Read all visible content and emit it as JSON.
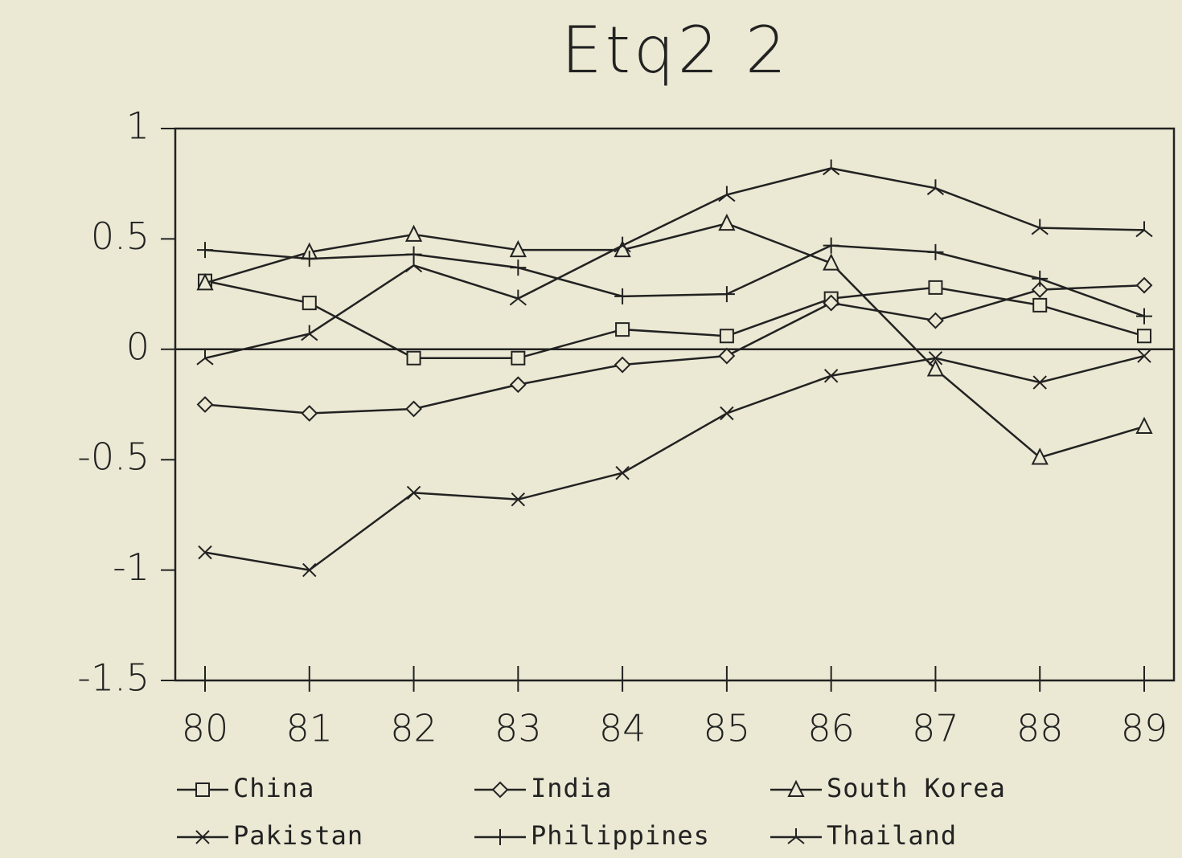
{
  "chart_data": {
    "type": "line",
    "title": "Etq2 2",
    "categories": [
      "80",
      "81",
      "82",
      "83",
      "84",
      "85",
      "86",
      "87",
      "88",
      "89"
    ],
    "ylim": [
      -1.5,
      1
    ],
    "yticks": [
      1,
      0.5,
      0,
      -0.5,
      -1,
      -1.5
    ],
    "zero_line": true,
    "grid": false,
    "series": [
      {
        "name": "China",
        "color": "#222222",
        "marker": "square",
        "values": [
          0.31,
          0.21,
          -0.04,
          -0.04,
          0.09,
          0.06,
          0.23,
          0.28,
          0.2,
          0.06
        ]
      },
      {
        "name": "India",
        "color": "#222222",
        "marker": "diamond",
        "values": [
          -0.25,
          -0.29,
          -0.27,
          -0.16,
          -0.07,
          -0.03,
          0.21,
          0.13,
          0.27,
          0.29
        ]
      },
      {
        "name": "South Korea",
        "color": "#222222",
        "marker": "triangle",
        "values": [
          0.3,
          0.44,
          0.52,
          0.45,
          0.45,
          0.57,
          0.39,
          -0.09,
          -0.49,
          -0.35
        ]
      },
      {
        "name": "Pakistan",
        "color": "#222222",
        "marker": "x",
        "values": [
          -0.92,
          -1.0,
          -0.65,
          -0.68,
          -0.56,
          -0.29,
          -0.12,
          -0.04,
          -0.15,
          -0.03
        ]
      },
      {
        "name": "Philippines",
        "color": "#222222",
        "marker": "plus",
        "values": [
          0.45,
          0.41,
          0.43,
          0.37,
          0.24,
          0.25,
          0.47,
          0.44,
          0.32,
          0.15
        ]
      },
      {
        "name": "Thailand",
        "color": "#222222",
        "marker": "fork",
        "values": [
          -0.04,
          0.07,
          0.38,
          0.23,
          0.47,
          0.7,
          0.82,
          0.73,
          0.55,
          0.54
        ]
      }
    ]
  }
}
